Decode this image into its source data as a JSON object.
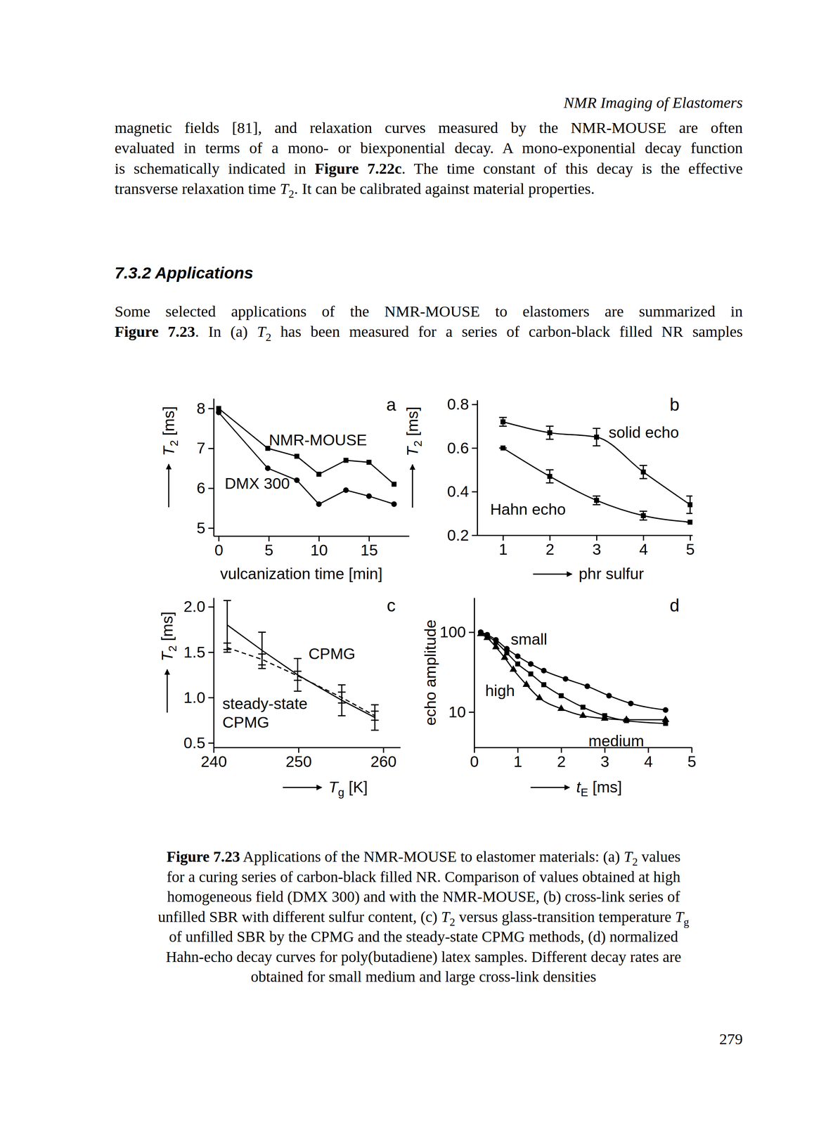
{
  "page": {
    "header": "NMR Imaging of Elastomers",
    "paragraph_1": [
      "magnetic fields [81], and relaxation curves measured by the NMR-MOUSE are often",
      "evaluated in terms of a mono- or biexponential decay. A mono-exponential decay function",
      "is schematically indicated in Figure 7.22c. The time constant of this decay is the effective",
      "transverse relaxation time T2. It can be calibrated against material properties."
    ],
    "section_heading": "7.3.2 Applications",
    "paragraph_2": [
      "Some selected applications of the NMR-MOUSE to elastomers are summarized in",
      "Figure 7.23. In (a) T2 has been measured for a series of carbon-black filled NR samples"
    ],
    "caption": [
      "Figure 7.23 Applications of the NMR-MOUSE to elastomer materials: (a) T2 values",
      "for a curing series of carbon-black filled NR. Comparison of values obtained at high",
      "homogeneous field (DMX 300) and with the NMR-MOUSE, (b) cross-link series of",
      "unfilled SBR with different sulfur content, (c) T2 versus glass-transition temperature Tg",
      "of unfilled SBR by the CPMG and the steady-state CPMG methods, (d) normalized",
      "Hahn-echo decay curves for poly(butadiene) latex samples. Different decay rates are",
      "obtained for small medium and large cross-link densities"
    ],
    "page_number": 279
  },
  "chart_data": [
    {
      "type": "line",
      "title": "a",
      "x_label": "vulcanization time [min]",
      "y_label": "T2 [ms]",
      "x": [
        0,
        4.9,
        7.8,
        10,
        12.7,
        15,
        17.5
      ],
      "xlim": [
        -0.5,
        19
      ],
      "xticks": [
        0,
        5,
        10,
        15
      ],
      "ylim": [
        4.8,
        8.25
      ],
      "yticks": [
        5,
        6,
        7,
        8
      ],
      "series": [
        {
          "name": "NMR-MOUSE",
          "color": "#000000",
          "marker": "square",
          "values": [
            8.0,
            7.0,
            6.8,
            6.35,
            6.7,
            6.65,
            6.1
          ]
        },
        {
          "name": "DMX 300",
          "color": "#000000",
          "marker": "circle",
          "values": [
            7.9,
            6.5,
            6.2,
            5.6,
            5.95,
            5.8,
            5.6
          ]
        }
      ]
    },
    {
      "type": "line",
      "title": "b",
      "x_label": "phr sulfur",
      "y_label": "T2 [ms]",
      "x": [
        1,
        2,
        3,
        4,
        5
      ],
      "xlim": [
        0.45,
        5.05
      ],
      "xticks": [
        1,
        2,
        3,
        4,
        5
      ],
      "ylim": [
        0.2,
        0.82
      ],
      "yticks": [
        0.2,
        0.4,
        0.6,
        0.8
      ],
      "series": [
        {
          "name": "solid echo",
          "color": "#000000",
          "marker": "square",
          "values": [
            0.72,
            0.67,
            0.65,
            0.49,
            0.34
          ],
          "errors": [
            0.02,
            0.03,
            0.04,
            0.03,
            0.04
          ]
        },
        {
          "name": "Hahn echo",
          "color": "#000000",
          "marker": "square",
          "values": [
            0.6,
            0.47,
            0.36,
            0.29,
            0.26
          ],
          "errors": [
            0,
            0.03,
            0.02,
            0.02,
            0
          ]
        }
      ]
    },
    {
      "type": "line",
      "title": "c",
      "x_label": "Tg [K]",
      "y_label": "T2 [ms]",
      "x": [
        241.6,
        245.7,
        249.9,
        255.1,
        259.0
      ],
      "xlim": [
        240,
        262
      ],
      "xticks": [
        240,
        250,
        260
      ],
      "ylim": [
        0.45,
        2.1
      ],
      "yticks": [
        0.5,
        {
          "value": 1,
          "label": "1.0"
        },
        1.5,
        {
          "value": 2,
          "label": "2.0"
        }
      ],
      "series": [
        {
          "name": "CPMG",
          "color": "#000000",
          "line_style": "solid",
          "values": [
            1.8,
            1.52,
            1.25,
            0.97,
            0.78
          ],
          "errors": [
            0.27,
            0.2,
            0.18,
            0.17,
            0.14
          ]
        },
        {
          "name": "steady-state CPMG",
          "color": "#000000",
          "line_style": "dashed",
          "values": [
            1.55,
            1.42,
            1.24,
            1.0,
            0.8
          ],
          "errors": [
            0.05,
            0.06,
            0.05,
            0.06,
            0.05
          ]
        }
      ]
    },
    {
      "type": "line",
      "title": "d",
      "x_label": "tE [ms]",
      "y_label": "echo amplitude",
      "log": "y",
      "xlim": [
        0,
        5
      ],
      "xticks": [
        0,
        1,
        2,
        3,
        4,
        5
      ],
      "ylim": [
        3.6,
        270
      ],
      "yticks": [
        10,
        100
      ],
      "series": [
        {
          "name": "small",
          "color": "#000000",
          "marker": "circle",
          "x": [
            0.15,
            0.3,
            0.5,
            0.75,
            1.0,
            1.3,
            1.6,
            2.1,
            2.6,
            3.1,
            3.6,
            4.4
          ],
          "values": [
            100,
            93,
            80,
            62,
            50,
            40,
            33,
            26,
            21,
            16,
            12.8,
            10.6
          ]
        },
        {
          "name": "medium",
          "color": "#000000",
          "marker": "square",
          "x": [
            0.15,
            0.3,
            0.5,
            0.75,
            1.0,
            1.3,
            1.6,
            2.0,
            2.5,
            3.0,
            3.5,
            4.4
          ],
          "values": [
            98,
            90,
            75,
            55,
            40,
            30,
            22,
            16,
            11.5,
            9.0,
            7.8,
            7.2
          ]
        },
        {
          "name": "high",
          "color": "#000000",
          "marker": "triangle",
          "x": [
            0.15,
            0.3,
            0.5,
            0.7,
            0.9,
            1.2,
            1.5,
            2.0,
            2.5,
            3.0,
            3.5,
            4.4
          ],
          "values": [
            95,
            85,
            65,
            48,
            34,
            22,
            15,
            11,
            9.0,
            8.3,
            8.0,
            8.0
          ]
        }
      ]
    }
  ]
}
